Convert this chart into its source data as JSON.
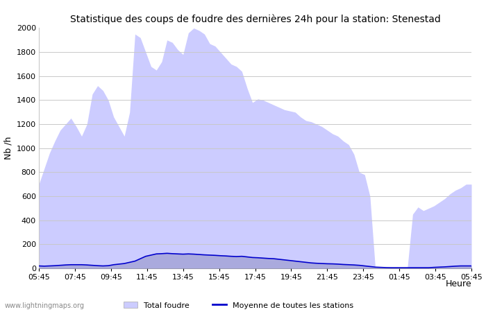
{
  "title": "Statistique des coups de foudre des dernières 24h pour la station: Stenestad",
  "xlabel": "Heure",
  "ylabel": "Nb /h",
  "ylim": [
    0,
    2000
  ],
  "yticks": [
    0,
    200,
    400,
    600,
    800,
    1000,
    1200,
    1400,
    1600,
    1800,
    2000
  ],
  "x_labels": [
    "05:45",
    "07:45",
    "09:45",
    "11:45",
    "13:45",
    "15:45",
    "17:45",
    "19:45",
    "21:45",
    "23:45",
    "01:45",
    "03:45",
    "05:45"
  ],
  "bg_color": "#ffffff",
  "grid_color": "#c8c8c8",
  "fill_total_color": "#ccccff",
  "fill_local_color": "#aaaadd",
  "line_color": "#0000cc",
  "watermark": "www.lightningmaps.org",
  "total_foudre": [
    700,
    830,
    960,
    1060,
    1150,
    1200,
    1250,
    1180,
    1100,
    1200,
    1450,
    1520,
    1480,
    1400,
    1260,
    1180,
    1100,
    1300,
    1950,
    1920,
    1800,
    1680,
    1650,
    1720,
    1900,
    1880,
    1820,
    1780,
    1960,
    2000,
    1980,
    1950,
    1870,
    1850,
    1800,
    1750,
    1700,
    1680,
    1640,
    1500,
    1380,
    1410,
    1400,
    1380,
    1360,
    1340,
    1320,
    1310,
    1300,
    1260,
    1230,
    1220,
    1200,
    1180,
    1150,
    1120,
    1100,
    1060,
    1030,
    950,
    800,
    780,
    600,
    0,
    0,
    0,
    0,
    0,
    0,
    0,
    450,
    510,
    480,
    500,
    520,
    550,
    580,
    620,
    650,
    670,
    700,
    700
  ],
  "moyenne": [
    20,
    18,
    20,
    22,
    25,
    28,
    30,
    30,
    30,
    28,
    25,
    22,
    20,
    22,
    30,
    35,
    40,
    50,
    60,
    80,
    100,
    110,
    120,
    122,
    125,
    122,
    120,
    118,
    120,
    118,
    115,
    112,
    110,
    108,
    105,
    103,
    100,
    98,
    100,
    95,
    90,
    88,
    85,
    82,
    80,
    75,
    70,
    65,
    60,
    55,
    50,
    45,
    42,
    40,
    38,
    37,
    35,
    32,
    30,
    28,
    25,
    20,
    15,
    10,
    8,
    6,
    5,
    5,
    5,
    5,
    5,
    5,
    5,
    5,
    8,
    10,
    12,
    15,
    18,
    20,
    20,
    20
  ],
  "local_foudre": [
    20,
    18,
    20,
    22,
    25,
    28,
    30,
    30,
    30,
    28,
    25,
    22,
    20,
    22,
    30,
    35,
    40,
    50,
    60,
    80,
    100,
    110,
    120,
    122,
    125,
    122,
    120,
    118,
    120,
    118,
    115,
    112,
    110,
    108,
    105,
    103,
    100,
    98,
    100,
    95,
    90,
    88,
    85,
    82,
    80,
    75,
    70,
    65,
    60,
    55,
    50,
    45,
    42,
    40,
    38,
    37,
    35,
    32,
    30,
    28,
    25,
    20,
    15,
    10,
    8,
    6,
    5,
    5,
    5,
    5,
    5,
    5,
    5,
    5,
    8,
    10,
    12,
    15,
    18,
    20,
    20,
    20
  ]
}
